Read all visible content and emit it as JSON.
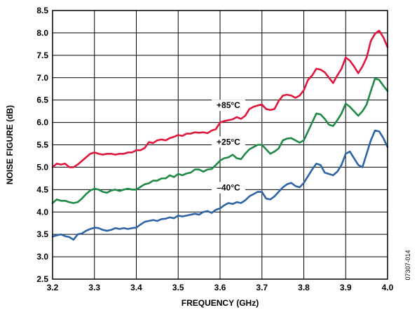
{
  "chart_data": {
    "type": "line",
    "xlabel": "FREQUENCY (GHz)",
    "ylabel": "NOISE FIGURE (dB)",
    "xlim": [
      3.2,
      4.0
    ],
    "ylim": [
      2.5,
      8.5
    ],
    "xticks": [
      "3.2",
      "3.3",
      "3.4",
      "3.5",
      "3.6",
      "3.7",
      "3.8",
      "3.9",
      "4.0"
    ],
    "yticks": [
      "2.5",
      "3.0",
      "3.5",
      "4.0",
      "4.5",
      "5.0",
      "5.5",
      "6.0",
      "6.5",
      "7.0",
      "7.5",
      "8.0",
      "8.5"
    ],
    "grid": true,
    "figure_id": "07307-014",
    "series": [
      {
        "name": "+85°C",
        "color": "#e0173c",
        "points": [
          [
            3.2,
            5.0
          ],
          [
            3.21,
            5.08
          ],
          [
            3.22,
            5.06
          ],
          [
            3.23,
            5.08
          ],
          [
            3.24,
            5.0
          ],
          [
            3.25,
            5.0
          ],
          [
            3.26,
            5.06
          ],
          [
            3.27,
            5.14
          ],
          [
            3.28,
            5.22
          ],
          [
            3.29,
            5.3
          ],
          [
            3.3,
            5.33
          ],
          [
            3.31,
            5.3
          ],
          [
            3.32,
            5.28
          ],
          [
            3.33,
            5.3
          ],
          [
            3.34,
            5.3
          ],
          [
            3.35,
            5.28
          ],
          [
            3.36,
            5.3
          ],
          [
            3.37,
            5.3
          ],
          [
            3.38,
            5.33
          ],
          [
            3.39,
            5.33
          ],
          [
            3.4,
            5.38
          ],
          [
            3.41,
            5.38
          ],
          [
            3.42,
            5.43
          ],
          [
            3.43,
            5.56
          ],
          [
            3.44,
            5.54
          ],
          [
            3.45,
            5.6
          ],
          [
            3.46,
            5.62
          ],
          [
            3.47,
            5.6
          ],
          [
            3.48,
            5.65
          ],
          [
            3.49,
            5.68
          ],
          [
            3.5,
            5.72
          ],
          [
            3.51,
            5.7
          ],
          [
            3.52,
            5.75
          ],
          [
            3.53,
            5.75
          ],
          [
            3.54,
            5.78
          ],
          [
            3.55,
            5.77
          ],
          [
            3.56,
            5.78
          ],
          [
            3.57,
            5.76
          ],
          [
            3.58,
            5.82
          ],
          [
            3.59,
            5.85
          ],
          [
            3.6,
            6.0
          ],
          [
            3.61,
            6.03
          ],
          [
            3.62,
            6.05
          ],
          [
            3.63,
            6.07
          ],
          [
            3.64,
            6.12
          ],
          [
            3.65,
            6.08
          ],
          [
            3.66,
            6.15
          ],
          [
            3.67,
            6.3
          ],
          [
            3.68,
            6.35
          ],
          [
            3.69,
            6.38
          ],
          [
            3.7,
            6.4
          ],
          [
            3.71,
            6.3
          ],
          [
            3.72,
            6.28
          ],
          [
            3.73,
            6.3
          ],
          [
            3.74,
            6.48
          ],
          [
            3.75,
            6.6
          ],
          [
            3.76,
            6.62
          ],
          [
            3.77,
            6.6
          ],
          [
            3.78,
            6.55
          ],
          [
            3.79,
            6.6
          ],
          [
            3.8,
            6.72
          ],
          [
            3.81,
            6.95
          ],
          [
            3.82,
            7.05
          ],
          [
            3.83,
            7.2
          ],
          [
            3.84,
            7.18
          ],
          [
            3.85,
            7.12
          ],
          [
            3.86,
            7.0
          ],
          [
            3.87,
            6.88
          ],
          [
            3.88,
            7.05
          ],
          [
            3.89,
            7.2
          ],
          [
            3.9,
            7.45
          ],
          [
            3.91,
            7.38
          ],
          [
            3.92,
            7.25
          ],
          [
            3.93,
            7.1
          ],
          [
            3.94,
            7.25
          ],
          [
            3.95,
            7.45
          ],
          [
            3.96,
            7.82
          ],
          [
            3.97,
            7.98
          ],
          [
            3.98,
            8.05
          ],
          [
            3.99,
            7.9
          ],
          [
            4.0,
            7.68
          ]
        ]
      },
      {
        "name": "+25°C",
        "color": "#1f8a45",
        "points": [
          [
            3.2,
            4.2
          ],
          [
            3.21,
            4.28
          ],
          [
            3.22,
            4.25
          ],
          [
            3.23,
            4.25
          ],
          [
            3.24,
            4.22
          ],
          [
            3.25,
            4.2
          ],
          [
            3.26,
            4.22
          ],
          [
            3.27,
            4.3
          ],
          [
            3.28,
            4.4
          ],
          [
            3.29,
            4.48
          ],
          [
            3.3,
            4.52
          ],
          [
            3.31,
            4.5
          ],
          [
            3.32,
            4.45
          ],
          [
            3.33,
            4.43
          ],
          [
            3.34,
            4.48
          ],
          [
            3.35,
            4.5
          ],
          [
            3.36,
            4.47
          ],
          [
            3.37,
            4.5
          ],
          [
            3.38,
            4.52
          ],
          [
            3.39,
            4.5
          ],
          [
            3.4,
            4.5
          ],
          [
            3.41,
            4.56
          ],
          [
            3.42,
            4.62
          ],
          [
            3.43,
            4.64
          ],
          [
            3.44,
            4.7
          ],
          [
            3.45,
            4.7
          ],
          [
            3.46,
            4.75
          ],
          [
            3.47,
            4.75
          ],
          [
            3.48,
            4.82
          ],
          [
            3.49,
            4.78
          ],
          [
            3.5,
            4.85
          ],
          [
            3.51,
            4.82
          ],
          [
            3.52,
            4.86
          ],
          [
            3.53,
            4.88
          ],
          [
            3.54,
            4.95
          ],
          [
            3.55,
            4.95
          ],
          [
            3.56,
            4.9
          ],
          [
            3.57,
            4.95
          ],
          [
            3.58,
            4.96
          ],
          [
            3.59,
            5.05
          ],
          [
            3.6,
            5.15
          ],
          [
            3.61,
            5.2
          ],
          [
            3.62,
            5.22
          ],
          [
            3.63,
            5.28
          ],
          [
            3.64,
            5.2
          ],
          [
            3.65,
            5.18
          ],
          [
            3.66,
            5.3
          ],
          [
            3.67,
            5.4
          ],
          [
            3.68,
            5.45
          ],
          [
            3.69,
            5.5
          ],
          [
            3.7,
            5.5
          ],
          [
            3.71,
            5.4
          ],
          [
            3.72,
            5.3
          ],
          [
            3.73,
            5.35
          ],
          [
            3.74,
            5.42
          ],
          [
            3.75,
            5.6
          ],
          [
            3.76,
            5.64
          ],
          [
            3.77,
            5.65
          ],
          [
            3.78,
            5.6
          ],
          [
            3.79,
            5.55
          ],
          [
            3.8,
            5.6
          ],
          [
            3.81,
            5.8
          ],
          [
            3.82,
            6.0
          ],
          [
            3.83,
            6.2
          ],
          [
            3.84,
            6.18
          ],
          [
            3.85,
            6.08
          ],
          [
            3.86,
            5.95
          ],
          [
            3.87,
            5.92
          ],
          [
            3.88,
            6.05
          ],
          [
            3.89,
            6.2
          ],
          [
            3.9,
            6.42
          ],
          [
            3.91,
            6.35
          ],
          [
            3.92,
            6.25
          ],
          [
            3.93,
            6.15
          ],
          [
            3.94,
            6.25
          ],
          [
            3.95,
            6.4
          ],
          [
            3.96,
            6.7
          ],
          [
            3.97,
            6.98
          ],
          [
            3.98,
            6.95
          ],
          [
            3.99,
            6.82
          ],
          [
            4.0,
            6.7
          ]
        ]
      },
      {
        "name": "–40°C",
        "color": "#2e64a6",
        "points": [
          [
            3.2,
            3.45
          ],
          [
            3.21,
            3.48
          ],
          [
            3.22,
            3.5
          ],
          [
            3.23,
            3.46
          ],
          [
            3.24,
            3.44
          ],
          [
            3.25,
            3.38
          ],
          [
            3.26,
            3.5
          ],
          [
            3.27,
            3.52
          ],
          [
            3.28,
            3.58
          ],
          [
            3.29,
            3.62
          ],
          [
            3.3,
            3.65
          ],
          [
            3.31,
            3.64
          ],
          [
            3.32,
            3.6
          ],
          [
            3.33,
            3.58
          ],
          [
            3.34,
            3.6
          ],
          [
            3.35,
            3.64
          ],
          [
            3.36,
            3.62
          ],
          [
            3.37,
            3.64
          ],
          [
            3.38,
            3.62
          ],
          [
            3.39,
            3.64
          ],
          [
            3.4,
            3.65
          ],
          [
            3.41,
            3.72
          ],
          [
            3.42,
            3.78
          ],
          [
            3.43,
            3.8
          ],
          [
            3.44,
            3.82
          ],
          [
            3.45,
            3.8
          ],
          [
            3.46,
            3.84
          ],
          [
            3.47,
            3.85
          ],
          [
            3.48,
            3.88
          ],
          [
            3.49,
            3.86
          ],
          [
            3.5,
            3.92
          ],
          [
            3.51,
            3.9
          ],
          [
            3.52,
            3.92
          ],
          [
            3.53,
            3.94
          ],
          [
            3.54,
            3.96
          ],
          [
            3.55,
            3.94
          ],
          [
            3.56,
            4.0
          ],
          [
            3.57,
            4.02
          ],
          [
            3.58,
            3.98
          ],
          [
            3.59,
            4.05
          ],
          [
            3.6,
            4.08
          ],
          [
            3.61,
            4.15
          ],
          [
            3.62,
            4.2
          ],
          [
            3.63,
            4.18
          ],
          [
            3.64,
            4.22
          ],
          [
            3.65,
            4.2
          ],
          [
            3.66,
            4.26
          ],
          [
            3.67,
            4.35
          ],
          [
            3.68,
            4.4
          ],
          [
            3.69,
            4.45
          ],
          [
            3.7,
            4.45
          ],
          [
            3.71,
            4.3
          ],
          [
            3.72,
            4.28
          ],
          [
            3.73,
            4.35
          ],
          [
            3.74,
            4.45
          ],
          [
            3.75,
            4.55
          ],
          [
            3.76,
            4.62
          ],
          [
            3.77,
            4.65
          ],
          [
            3.78,
            4.58
          ],
          [
            3.79,
            4.55
          ],
          [
            3.8,
            4.65
          ],
          [
            3.81,
            4.8
          ],
          [
            3.82,
            4.95
          ],
          [
            3.83,
            5.08
          ],
          [
            3.84,
            5.05
          ],
          [
            3.85,
            4.88
          ],
          [
            3.86,
            4.85
          ],
          [
            3.87,
            4.82
          ],
          [
            3.88,
            4.9
          ],
          [
            3.89,
            5.05
          ],
          [
            3.9,
            5.3
          ],
          [
            3.91,
            5.35
          ],
          [
            3.92,
            5.2
          ],
          [
            3.93,
            5.05
          ],
          [
            3.94,
            5.0
          ],
          [
            3.95,
            5.3
          ],
          [
            3.96,
            5.6
          ],
          [
            3.97,
            5.82
          ],
          [
            3.98,
            5.8
          ],
          [
            3.99,
            5.65
          ],
          [
            4.0,
            5.45
          ]
        ]
      }
    ],
    "annotations": [
      {
        "series": 0,
        "text": "+85°C",
        "x": 3.62,
        "y": 6.32
      },
      {
        "series": 1,
        "text": "+25°C",
        "x": 3.62,
        "y": 5.5
      },
      {
        "series": 2,
        "text": "–40°C",
        "x": 3.62,
        "y": 4.48
      }
    ]
  }
}
